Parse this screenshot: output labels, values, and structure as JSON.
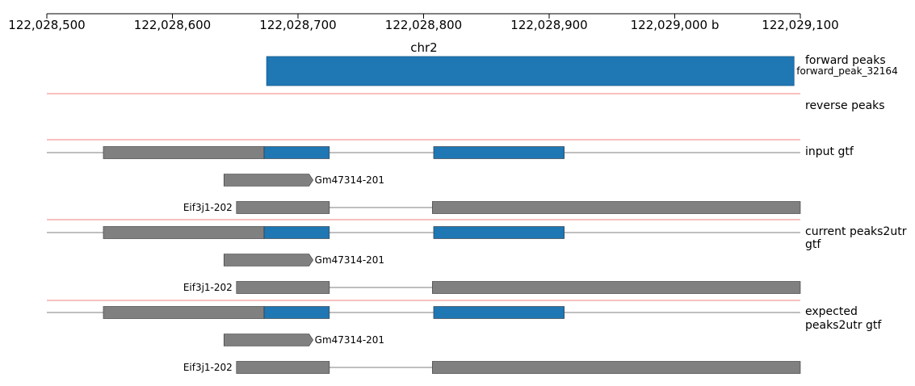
{
  "chart_data": {
    "type": "genome_browser",
    "chromosome": "chr2",
    "region": {
      "start": 122028500,
      "end": 122029100
    },
    "ticks": [
      {
        "pos": 122028500,
        "label": "122,028,500"
      },
      {
        "pos": 122028600,
        "label": "122,028,600"
      },
      {
        "pos": 122028700,
        "label": "122,028,700"
      },
      {
        "pos": 122028800,
        "label": "122,028,800"
      },
      {
        "pos": 122028900,
        "label": "122,028,900"
      },
      {
        "pos": 122029000,
        "label": "122,029,000 b"
      },
      {
        "pos": 122029100,
        "label": "122,029,100"
      }
    ],
    "tracks": [
      {
        "label": "forward peaks",
        "kind": "peaks",
        "features": [
          {
            "name": "forward_peak_32164",
            "start": 122028675,
            "end": 122029095,
            "color": "#1f77b4"
          }
        ]
      },
      {
        "label": "reverse peaks",
        "kind": "peaks",
        "features": []
      },
      {
        "label": "input gtf",
        "kind": "gtf",
        "transcripts": [
          {
            "name": "",
            "strand": "+",
            "line": [
              122028500,
              122029100
            ],
            "exons": [
              {
                "start": 122028545,
                "end": 122028673,
                "color": "#808080"
              },
              {
                "start": 122028673,
                "end": 122028725,
                "color": "#1f77b4"
              },
              {
                "start": 122028808,
                "end": 122028912,
                "color": "#1f77b4"
              }
            ]
          },
          {
            "name": "Gm47314-201",
            "strand": "+",
            "label_side": "right",
            "exons": [
              {
                "start": 122028641,
                "end": 122028712,
                "color": "#808080",
                "arrow": true
              }
            ]
          },
          {
            "name": "Eif3j1-202",
            "strand": "-",
            "label_side": "left",
            "line": [
              122028651,
              122029100
            ],
            "exons": [
              {
                "start": 122028651,
                "end": 122028725,
                "color": "#808080"
              },
              {
                "start": 122028807,
                "end": 122029100,
                "color": "#808080"
              }
            ]
          }
        ]
      },
      {
        "label": "current peaks2utr gtf",
        "label_lines": [
          "current peaks2utr",
          "gtf"
        ],
        "kind": "gtf",
        "transcripts": [
          {
            "name": "",
            "strand": "+",
            "line": [
              122028500,
              122029100
            ],
            "exons": [
              {
                "start": 122028545,
                "end": 122028673,
                "color": "#808080"
              },
              {
                "start": 122028673,
                "end": 122028725,
                "color": "#1f77b4"
              },
              {
                "start": 122028808,
                "end": 122028912,
                "color": "#1f77b4"
              }
            ]
          },
          {
            "name": "Gm47314-201",
            "strand": "+",
            "label_side": "right",
            "exons": [
              {
                "start": 122028641,
                "end": 122028712,
                "color": "#808080",
                "arrow": true
              }
            ]
          },
          {
            "name": "Eif3j1-202",
            "strand": "-",
            "label_side": "left",
            "line": [
              122028651,
              122029100
            ],
            "exons": [
              {
                "start": 122028651,
                "end": 122028725,
                "color": "#808080"
              },
              {
                "start": 122028807,
                "end": 122029100,
                "color": "#808080"
              }
            ]
          }
        ]
      },
      {
        "label": "expected peaks2utr gtf",
        "label_lines": [
          "expected",
          "peaks2utr gtf"
        ],
        "kind": "gtf",
        "transcripts": [
          {
            "name": "",
            "strand": "+",
            "line": [
              122028500,
              122029100
            ],
            "exons": [
              {
                "start": 122028545,
                "end": 122028673,
                "color": "#808080"
              },
              {
                "start": 122028673,
                "end": 122028725,
                "color": "#1f77b4"
              },
              {
                "start": 122028808,
                "end": 122028912,
                "color": "#1f77b4"
              }
            ]
          },
          {
            "name": "Gm47314-201",
            "strand": "+",
            "label_side": "right",
            "exons": [
              {
                "start": 122028641,
                "end": 122028712,
                "color": "#808080",
                "arrow": true
              }
            ]
          },
          {
            "name": "Eif3j1-202",
            "strand": "-",
            "label_side": "left",
            "line": [
              122028651,
              122029100
            ],
            "exons": [
              {
                "start": 122028651,
                "end": 122028725,
                "color": "#808080"
              },
              {
                "start": 122028807,
                "end": 122029100,
                "color": "#808080"
              }
            ]
          }
        ]
      }
    ],
    "colors": {
      "separator": "#f08080",
      "intron_line": "#555555",
      "exon_stroke": "#333333"
    }
  }
}
